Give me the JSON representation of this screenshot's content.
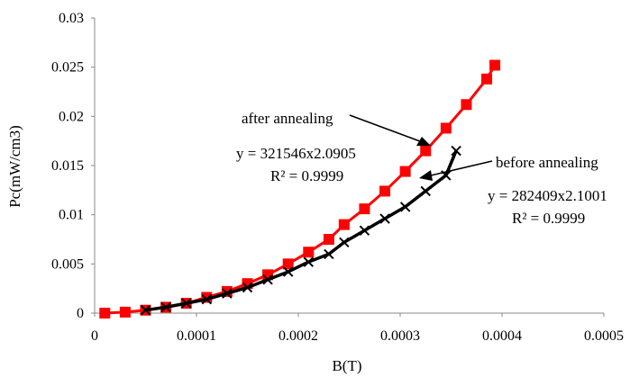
{
  "chart_data": {
    "type": "scatter",
    "title": "",
    "xlabel": "B(T)",
    "ylabel": "Pc(mW/cm3)",
    "xlim": [
      0,
      0.0005
    ],
    "ylim": [
      0,
      0.03
    ],
    "x_ticks": [
      "0",
      "0.0001",
      "0.0002",
      "0.0003",
      "0.0004",
      "0.0005"
    ],
    "y_ticks": [
      "0",
      "0.005",
      "0.01",
      "0.015",
      "0.02",
      "0.025",
      "0.03"
    ],
    "grid": false,
    "series": [
      {
        "key": "after",
        "color": "#ff0000",
        "marker": "square",
        "x": [
          1e-05,
          3e-05,
          5e-05,
          7e-05,
          9e-05,
          0.00011,
          0.00013,
          0.00015,
          0.00017,
          0.00019,
          0.00021,
          0.00023,
          0.000245,
          0.000265,
          0.000285,
          0.000305,
          0.000325,
          0.000345,
          0.000365,
          0.000385,
          0.000393
        ],
        "y": [
          0.0,
          0.0001,
          0.0003,
          0.0006,
          0.001,
          0.0016,
          0.0022,
          0.003,
          0.0039,
          0.005,
          0.0062,
          0.0075,
          0.009,
          0.0106,
          0.0124,
          0.0144,
          0.0165,
          0.0188,
          0.0212,
          0.0238,
          0.0252
        ]
      },
      {
        "key": "before",
        "color": "#000000",
        "marker": "x",
        "x": [
          5e-05,
          7e-05,
          9e-05,
          0.00011,
          0.00013,
          0.00015,
          0.00017,
          0.00019,
          0.00021,
          0.00023,
          0.000245,
          0.000265,
          0.000285,
          0.000305,
          0.000325,
          0.000345,
          0.000355
        ],
        "y": [
          0.0003,
          0.0006,
          0.001,
          0.0014,
          0.002,
          0.0026,
          0.0034,
          0.0042,
          0.0052,
          0.006,
          0.0072,
          0.0084,
          0.0096,
          0.0108,
          0.0124,
          0.014,
          0.0165
        ]
      }
    ],
    "annotations": {
      "after_label": "after annealing",
      "after_equation": "y = 321546x2.0905",
      "after_r2": "R² = 0.9999",
      "before_label": "before annealing",
      "before_equation": "y = 282409x2.1001",
      "before_r2": "R² = 0.9999"
    }
  }
}
